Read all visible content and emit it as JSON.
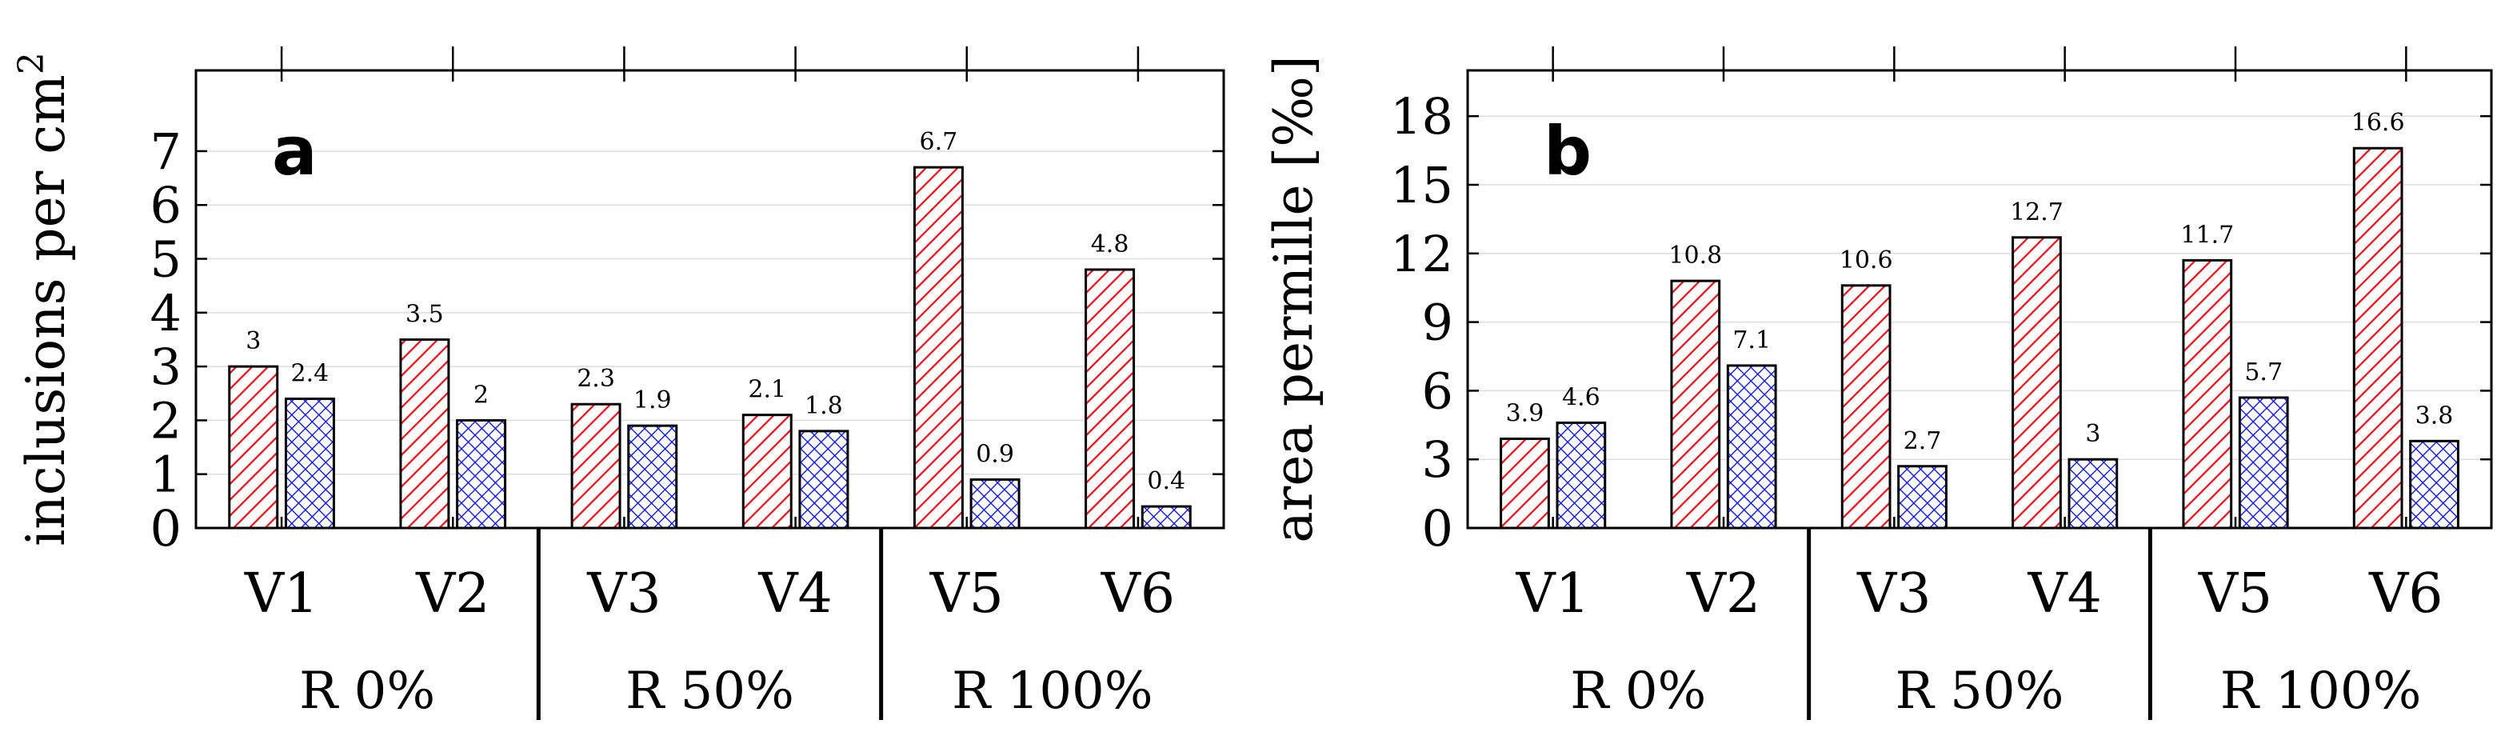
{
  "chart_data": [
    {
      "type": "bar",
      "panel_label": "a",
      "ylabel": "inclusions per cm",
      "ylabel_superscript": "2",
      "ylim": [
        0,
        8.5
      ],
      "yticks": [
        0,
        1,
        2,
        3,
        4,
        5,
        6,
        7
      ],
      "categories": [
        "V1",
        "V2",
        "V3",
        "V4",
        "V5",
        "V6"
      ],
      "groups": [
        {
          "label": "R 0%",
          "categories": [
            "V1",
            "V2"
          ]
        },
        {
          "label": "R 50%",
          "categories": [
            "V3",
            "V4"
          ]
        },
        {
          "label": "R 100%",
          "categories": [
            "V5",
            "V6"
          ]
        }
      ],
      "series": [
        {
          "values": [
            3,
            3.5,
            2.3,
            2.1,
            6.7,
            4.8
          ],
          "labels": [
            "3",
            "3.5",
            "2.3",
            "2.1",
            "6.7",
            "4.8"
          ],
          "color": "#e8101a",
          "pattern": "diagonal-hatch"
        },
        {
          "values": [
            2.4,
            2,
            1.9,
            1.8,
            0.9,
            0.4
          ],
          "labels": [
            "2.4",
            "2",
            "1.9",
            "1.8",
            "0.9",
            "0.4"
          ],
          "color": "#1018e8",
          "pattern": "crosshatch"
        }
      ],
      "grid": "horizontal"
    },
    {
      "type": "bar",
      "panel_label": "b",
      "ylabel": "area permille [‰]",
      "ylabel_superscript": "",
      "ylim": [
        0,
        20
      ],
      "yticks": [
        0,
        3,
        6,
        9,
        12,
        15,
        18
      ],
      "categories": [
        "V1",
        "V2",
        "V3",
        "V4",
        "V5",
        "V6"
      ],
      "groups": [
        {
          "label": "R 0%",
          "categories": [
            "V1",
            "V2"
          ]
        },
        {
          "label": "R 50%",
          "categories": [
            "V3",
            "V4"
          ]
        },
        {
          "label": "R 100%",
          "categories": [
            "V5",
            "V6"
          ]
        }
      ],
      "series": [
        {
          "values": [
            3.9,
            10.8,
            10.6,
            12.7,
            11.7,
            16.6
          ],
          "labels": [
            "3.9",
            "10.8",
            "10.6",
            "12.7",
            "11.7",
            "16.6"
          ],
          "color": "#e8101a",
          "pattern": "diagonal-hatch"
        },
        {
          "values": [
            4.6,
            7.1,
            2.7,
            3,
            5.7,
            3.8
          ],
          "labels": [
            "4.6",
            "7.1",
            "2.7",
            "3",
            "5.7",
            "3.8"
          ],
          "color": "#1018e8",
          "pattern": "crosshatch"
        }
      ],
      "grid": "horizontal"
    }
  ]
}
